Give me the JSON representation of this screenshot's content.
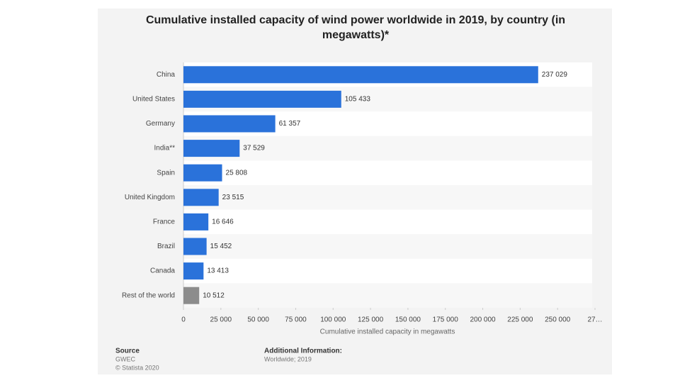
{
  "chart_data": {
    "type": "bar",
    "orientation": "horizontal",
    "title": "Cumulative installed capacity of wind power worldwide in 2019, by country (in megawatts)*",
    "categories": [
      "China",
      "United States",
      "Germany",
      "India**",
      "Spain",
      "United Kingdom",
      "France",
      "Brazil",
      "Canada",
      "Rest of the world"
    ],
    "values": [
      237029,
      105433,
      61357,
      37529,
      25808,
      23515,
      16646,
      15452,
      13413,
      10512
    ],
    "value_labels": [
      "237 029",
      "105 433",
      "61 357",
      "37 529",
      "25 808",
      "23 515",
      "16 646",
      "15 452",
      "13 413",
      "10 512"
    ],
    "colors": [
      "#2a72da",
      "#2a72da",
      "#2a72da",
      "#2a72da",
      "#2a72da",
      "#2a72da",
      "#2a72da",
      "#2a72da",
      "#2a72da",
      "#8c8c8c"
    ],
    "xlabel": "Cumulative installed capacity in megawatts",
    "xlim": [
      0,
      275000
    ],
    "xticks": [
      0,
      {
        "value": 25000,
        "label": "25 000"
      },
      {
        "value": 50000,
        "label": "50 000"
      },
      {
        "value": 75000,
        "label": "75 000"
      },
      {
        "value": 100000,
        "label": "100 000"
      },
      {
        "value": 125000,
        "label": "125 000"
      },
      {
        "value": 150000,
        "label": "150 000"
      },
      {
        "value": 175000,
        "label": "175 000"
      },
      {
        "value": 200000,
        "label": "200 000"
      },
      {
        "value": 225000,
        "label": "225 000"
      },
      {
        "value": 250000,
        "label": "250 000"
      },
      {
        "value": 275000,
        "label": "27…"
      }
    ],
    "source_title": "Source",
    "source": [
      "GWEC",
      "© Statista 2020"
    ],
    "info_title": "Additional Information:",
    "info": "Worldwide; 2019"
  }
}
